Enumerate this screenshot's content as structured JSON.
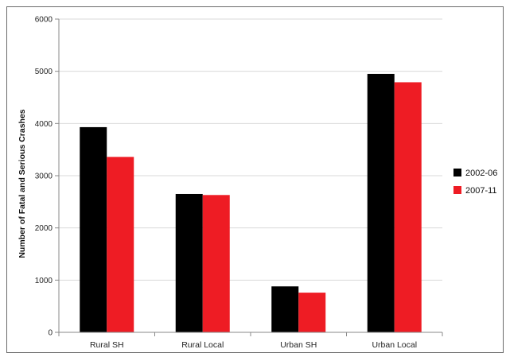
{
  "chart_data": {
    "type": "bar",
    "title": "",
    "xlabel": "",
    "ylabel": "Number of Fatal and Serious Crashes",
    "categories": [
      "Rural SH",
      "Rural Local",
      "Urban SH",
      "Urban Local"
    ],
    "series": [
      {
        "name": "2002-06",
        "color": "#000000",
        "values": [
          3930,
          2650,
          880,
          4950
        ]
      },
      {
        "name": "2007-11",
        "color": "#ee1c24",
        "values": [
          3360,
          2630,
          760,
          4790
        ]
      }
    ],
    "ylim": [
      0,
      6000
    ],
    "yticks": [
      0,
      1000,
      2000,
      3000,
      4000,
      5000,
      6000
    ],
    "grid": true,
    "legend_position": "right"
  }
}
